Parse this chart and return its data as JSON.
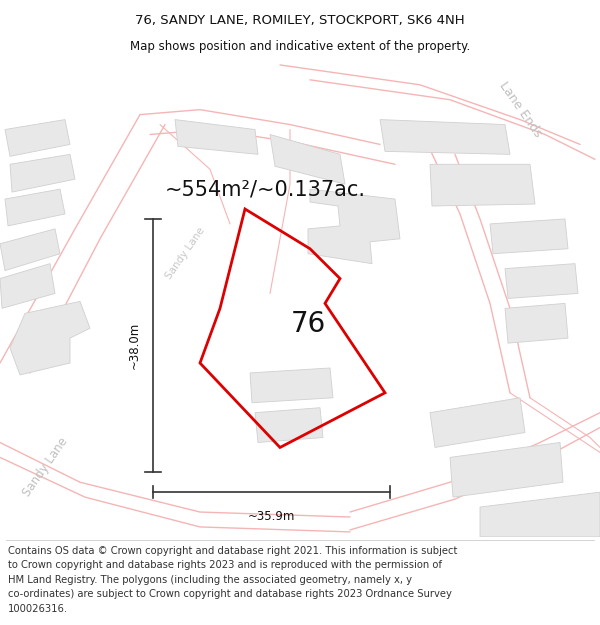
{
  "title": "76, SANDY LANE, ROMILEY, STOCKPORT, SK6 4NH",
  "subtitle": "Map shows position and indicative extent of the property.",
  "area_label": "~554m²/~0.137ac.",
  "width_label": "~35.9m",
  "height_label": "~38.0m",
  "label_76": "76",
  "street_label_sandy_lower": "Sandy Lane",
  "street_label_sandy_upper": "Sandy Lane",
  "lane_ends_label": "Lane Ends",
  "footer_lines": [
    "Contains OS data © Crown copyright and database right 2021. This information is subject",
    "to Crown copyright and database rights 2023 and is reproduced with the permission of",
    "HM Land Registry. The polygons (including the associated geometry, namely x, y",
    "co-ordinates) are subject to Crown copyright and database rights 2023 Ordnance Survey",
    "100026316."
  ],
  "bg_color": "#ffffff",
  "map_bg": "#f9f9f9",
  "building_color": "#e8e8e8",
  "building_edge": "#d0d0d0",
  "road_color": "#f5b8b8",
  "road_fill": "#f0f0f0",
  "red_poly_color": "#dd0000",
  "measure_color": "#333333",
  "road_label_color": "#c0c0c0",
  "title_fontsize": 9.5,
  "subtitle_fontsize": 8.5,
  "area_fontsize": 15,
  "label_76_fontsize": 20,
  "annotation_fontsize": 8.5,
  "footer_fontsize": 7.2,
  "street_fontsize": 8.5,
  "lane_ends_fontsize": 9
}
